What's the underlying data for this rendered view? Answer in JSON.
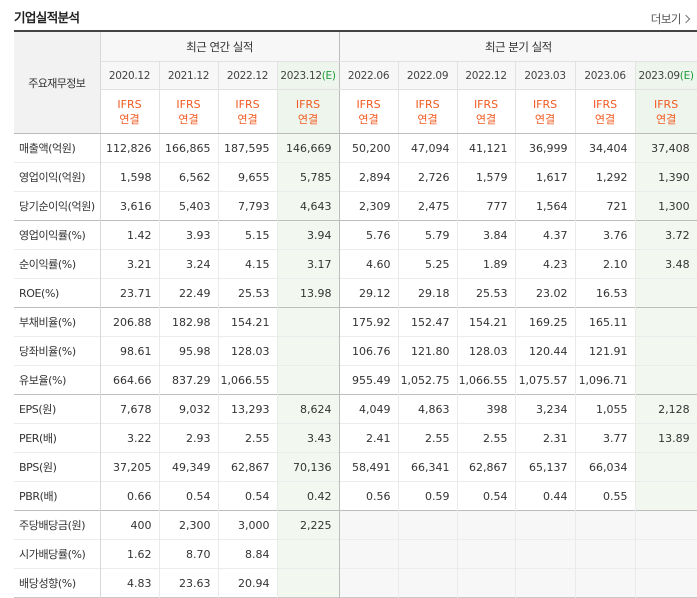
{
  "title": "기업실적분석",
  "more_label": "더보기",
  "header": {
    "label": "주요재무정보",
    "annual_group": "최근 연간 실적",
    "quarter_group": "최근 분기 실적",
    "annual_periods": [
      "2020.12",
      "2021.12",
      "2022.12",
      "2023.12"
    ],
    "annual_estimate_mark": "(E)",
    "quarter_periods": [
      "2022.06",
      "2022.09",
      "2022.12",
      "2023.03",
      "2023.06",
      "2023.09"
    ],
    "quarter_estimate_mark": "(E)",
    "ifrs_line1": "IFRS",
    "ifrs_line2": "연결"
  },
  "rows": [
    {
      "label": "매출액(억원)",
      "annual": [
        "112,826",
        "166,865",
        "187,595",
        "146,669"
      ],
      "quarter": [
        "50,200",
        "47,094",
        "41,121",
        "36,999",
        "34,404",
        "37,408"
      ]
    },
    {
      "label": "영업이익(억원)",
      "annual": [
        "1,598",
        "6,562",
        "9,655",
        "5,785"
      ],
      "quarter": [
        "2,894",
        "2,726",
        "1,579",
        "1,617",
        "1,292",
        "1,390"
      ]
    },
    {
      "label": "당기순이익(억원)",
      "annual": [
        "3,616",
        "5,403",
        "7,793",
        "4,643"
      ],
      "quarter": [
        "2,309",
        "2,475",
        "777",
        "1,564",
        "721",
        "1,300"
      ]
    },
    {
      "label": "영업이익률(%)",
      "annual": [
        "1.42",
        "3.93",
        "5.15",
        "3.94"
      ],
      "quarter": [
        "5.76",
        "5.79",
        "3.84",
        "4.37",
        "3.76",
        "3.72"
      ]
    },
    {
      "label": "순이익률(%)",
      "annual": [
        "3.21",
        "3.24",
        "4.15",
        "3.17"
      ],
      "quarter": [
        "4.60",
        "5.25",
        "1.89",
        "4.23",
        "2.10",
        "3.48"
      ]
    },
    {
      "label": "ROE(%)",
      "annual": [
        "23.71",
        "22.49",
        "25.53",
        "13.98"
      ],
      "quarter": [
        "29.12",
        "29.18",
        "25.53",
        "23.02",
        "16.53",
        ""
      ]
    },
    {
      "label": "부채비율(%)",
      "annual": [
        "206.88",
        "182.98",
        "154.21",
        ""
      ],
      "quarter": [
        "175.92",
        "152.47",
        "154.21",
        "169.25",
        "165.11",
        ""
      ]
    },
    {
      "label": "당좌비율(%)",
      "annual": [
        "98.61",
        "95.98",
        "128.03",
        ""
      ],
      "quarter": [
        "106.76",
        "121.80",
        "128.03",
        "120.44",
        "121.91",
        ""
      ]
    },
    {
      "label": "유보율(%)",
      "annual": [
        "664.66",
        "837.29",
        "1,066.55",
        ""
      ],
      "quarter": [
        "955.49",
        "1,052.75",
        "1,066.55",
        "1,075.57",
        "1,096.71",
        ""
      ]
    },
    {
      "label": "EPS(원)",
      "annual": [
        "7,678",
        "9,032",
        "13,293",
        "8,624"
      ],
      "quarter": [
        "4,049",
        "4,863",
        "398",
        "3,234",
        "1,055",
        "2,128"
      ]
    },
    {
      "label": "PER(배)",
      "annual": [
        "3.22",
        "2.93",
        "2.55",
        "3.43"
      ],
      "quarter": [
        "2.41",
        "2.55",
        "2.55",
        "2.31",
        "3.77",
        "13.89"
      ]
    },
    {
      "label": "BPS(원)",
      "annual": [
        "37,205",
        "49,349",
        "62,867",
        "70,136"
      ],
      "quarter": [
        "58,491",
        "66,341",
        "62,867",
        "65,137",
        "66,034",
        ""
      ]
    },
    {
      "label": "PBR(배)",
      "annual": [
        "0.66",
        "0.54",
        "0.54",
        "0.42"
      ],
      "quarter": [
        "0.56",
        "0.59",
        "0.54",
        "0.44",
        "0.55",
        ""
      ]
    },
    {
      "label": "주당배당금(원)",
      "annual": [
        "400",
        "2,300",
        "3,000",
        "2,225"
      ],
      "quarter": [
        "",
        "",
        "",
        "",
        "",
        ""
      ]
    },
    {
      "label": "시가배당률(%)",
      "annual": [
        "1.62",
        "8.70",
        "8.84",
        ""
      ],
      "quarter": [
        "",
        "",
        "",
        "",
        "",
        ""
      ]
    },
    {
      "label": "배당성향(%)",
      "annual": [
        "4.83",
        "23.63",
        "20.94",
        ""
      ],
      "quarter": [
        "",
        "",
        "",
        "",
        "",
        ""
      ]
    }
  ],
  "colors": {
    "ifrs": "#f05a22",
    "estimate": "#1e9c3b",
    "estimate_bg": "#f2f8f0"
  }
}
